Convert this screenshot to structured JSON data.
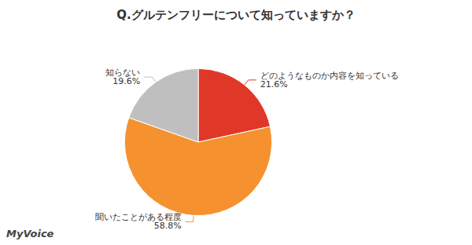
{
  "chart_data": {
    "type": "pie",
    "title": "Q.グルテンフリーについて知っていますか？",
    "categories": [
      "どのようなものか内容を知っている",
      "聞いたことがある程度",
      "知らない"
    ],
    "values": [
      21.6,
      58.8,
      19.6
    ],
    "value_labels": [
      "21.6%",
      "58.8%",
      "19.6%"
    ],
    "colors": [
      "#e03828",
      "#f5922f",
      "#c0bfbf"
    ],
    "data_labels": true,
    "annotations": [
      "MyVoice"
    ]
  }
}
